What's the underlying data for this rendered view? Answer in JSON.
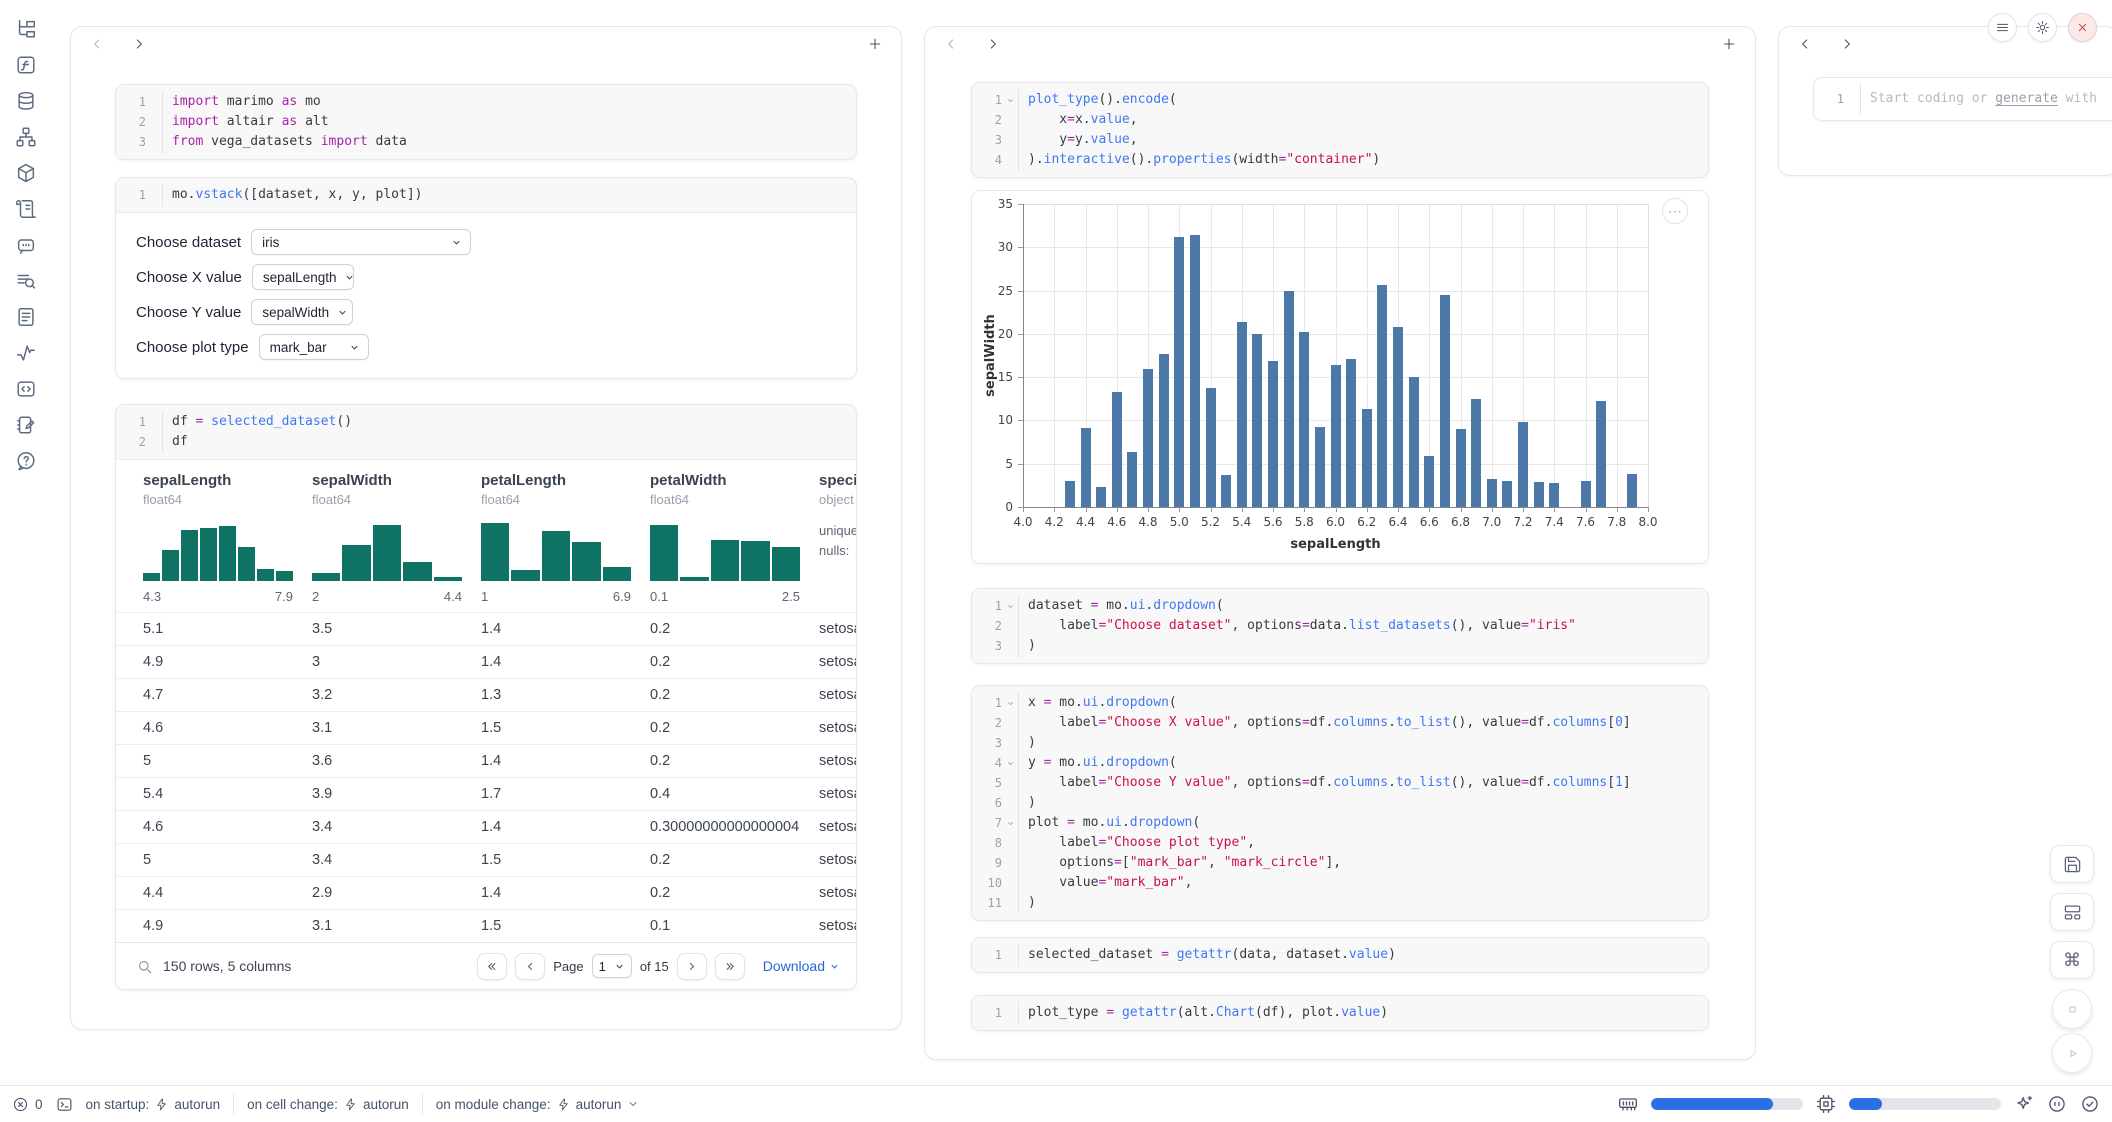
{
  "sidebar": {
    "icons": [
      "file-tree",
      "functions",
      "database",
      "dependency-graph",
      "packages",
      "logs",
      "ai-chat",
      "search-docs",
      "documentation",
      "tracing",
      "code-outline",
      "scratchpad",
      "help"
    ]
  },
  "left_panel": {
    "cells": {
      "imports": {
        "folds": [],
        "lines": [
          [
            [
              "k",
              "import"
            ],
            [
              "p",
              " marimo "
            ],
            [
              "k",
              "as"
            ],
            [
              "p",
              " mo"
            ]
          ],
          [
            [
              "k",
              "import"
            ],
            [
              "p",
              " altair "
            ],
            [
              "k",
              "as"
            ],
            [
              "p",
              " alt"
            ]
          ],
          [
            [
              "k",
              "from"
            ],
            [
              "p",
              " vega_datasets "
            ],
            [
              "k",
              "import"
            ],
            [
              "p",
              " data"
            ]
          ]
        ]
      },
      "layout": {
        "folds": [],
        "lines": [
          [
            [
              "p",
              "mo."
            ],
            [
              "f",
              "vstack"
            ],
            [
              "p",
              "([dataset, x, y, plot])"
            ]
          ]
        ]
      },
      "dataframe": {
        "folds": [],
        "lines": [
          [
            [
              "p",
              "df "
            ],
            [
              "k",
              "="
            ],
            [
              "p",
              " "
            ],
            [
              "f",
              "selected_dataset"
            ],
            [
              "p",
              "()"
            ]
          ],
          [
            [
              "p",
              "df"
            ]
          ]
        ]
      }
    },
    "controls": [
      {
        "label": "Choose dataset",
        "value": "iris"
      },
      {
        "label": "Choose X value",
        "value": "sepalLength"
      },
      {
        "label": "Choose Y value",
        "value": "sepalWidth"
      },
      {
        "label": "Choose plot type",
        "value": "mark_bar"
      }
    ],
    "table": {
      "columns": [
        {
          "name": "sepalLength",
          "dtype": "float64",
          "min": "4.3",
          "max": "7.9",
          "hist": [
            0.13,
            0.5,
            0.82,
            0.85,
            0.88,
            0.55,
            0.2,
            0.16
          ]
        },
        {
          "name": "sepalWidth",
          "dtype": "float64",
          "min": "2",
          "max": "4.4",
          "hist": [
            0.13,
            0.58,
            0.9,
            0.3,
            0.06
          ]
        },
        {
          "name": "petalLength",
          "dtype": "float64",
          "min": "1",
          "max": "6.9",
          "hist": [
            0.93,
            0.18,
            0.8,
            0.63,
            0.22
          ]
        },
        {
          "name": "petalWidth",
          "dtype": "float64",
          "min": "0.1",
          "max": "2.5",
          "hist": [
            0.9,
            0.06,
            0.66,
            0.64,
            0.55
          ]
        },
        {
          "name": "species",
          "dtype": "object",
          "stats": [
            "unique:",
            "nulls:"
          ]
        }
      ],
      "rows": [
        [
          "5.1",
          "3.5",
          "1.4",
          "0.2",
          "setosa"
        ],
        [
          "4.9",
          "3",
          "1.4",
          "0.2",
          "setosa"
        ],
        [
          "4.7",
          "3.2",
          "1.3",
          "0.2",
          "setosa"
        ],
        [
          "4.6",
          "3.1",
          "1.5",
          "0.2",
          "setosa"
        ],
        [
          "5",
          "3.6",
          "1.4",
          "0.2",
          "setosa"
        ],
        [
          "5.4",
          "3.9",
          "1.7",
          "0.4",
          "setosa"
        ],
        [
          "4.6",
          "3.4",
          "1.4",
          "0.30000000000000004",
          "setosa"
        ],
        [
          "5",
          "3.4",
          "1.5",
          "0.2",
          "setosa"
        ],
        [
          "4.4",
          "2.9",
          "1.4",
          "0.2",
          "setosa"
        ],
        [
          "4.9",
          "3.1",
          "1.5",
          "0.1",
          "setosa"
        ]
      ],
      "footer": {
        "summary": "150 rows, 5 columns",
        "page_label": "Page",
        "page_value": "1",
        "of_label": "of 15",
        "download_label": "Download"
      }
    }
  },
  "middle_panel": {
    "cells": {
      "plot": {
        "folds": [
          1
        ],
        "lines": [
          [
            [
              "f",
              "plot_type"
            ],
            [
              "p",
              "()."
            ],
            [
              "f",
              "encode"
            ],
            [
              "p",
              "("
            ]
          ],
          [
            [
              "p",
              "    x"
            ],
            [
              "k",
              "="
            ],
            [
              "p",
              "x."
            ],
            [
              "f",
              "value"
            ],
            [
              "p",
              ","
            ]
          ],
          [
            [
              "p",
              "    y"
            ],
            [
              "k",
              "="
            ],
            [
              "p",
              "y."
            ],
            [
              "f",
              "value"
            ],
            [
              "p",
              ","
            ]
          ],
          [
            [
              "p",
              ")."
            ],
            [
              "f",
              "interactive"
            ],
            [
              "p",
              "()."
            ],
            [
              "f",
              "properties"
            ],
            [
              "p",
              "(width"
            ],
            [
              "k",
              "="
            ],
            [
              "s",
              "\"container\""
            ],
            [
              "p",
              ")"
            ]
          ]
        ]
      },
      "dataset_dropdown": {
        "folds": [
          1
        ],
        "lines": [
          [
            [
              "p",
              "dataset "
            ],
            [
              "k",
              "="
            ],
            [
              "p",
              " mo."
            ],
            [
              "f",
              "ui"
            ],
            [
              "p",
              "."
            ],
            [
              "f",
              "dropdown"
            ],
            [
              "p",
              "("
            ]
          ],
          [
            [
              "p",
              "    label"
            ],
            [
              "k",
              "="
            ],
            [
              "s",
              "\"Choose dataset\""
            ],
            [
              "p",
              ", options"
            ],
            [
              "k",
              "="
            ],
            [
              "p",
              "data."
            ],
            [
              "f",
              "list_datasets"
            ],
            [
              "p",
              "(), value"
            ],
            [
              "k",
              "="
            ],
            [
              "s",
              "\"iris\""
            ]
          ],
          [
            [
              "p",
              ")"
            ]
          ]
        ]
      },
      "xy_dropdowns": {
        "folds": [
          1,
          4,
          7
        ],
        "lines": [
          [
            [
              "p",
              "x "
            ],
            [
              "k",
              "="
            ],
            [
              "p",
              " mo."
            ],
            [
              "f",
              "ui"
            ],
            [
              "p",
              "."
            ],
            [
              "f",
              "dropdown"
            ],
            [
              "p",
              "("
            ]
          ],
          [
            [
              "p",
              "    label"
            ],
            [
              "k",
              "="
            ],
            [
              "s",
              "\"Choose X value\""
            ],
            [
              "p",
              ", options"
            ],
            [
              "k",
              "="
            ],
            [
              "p",
              "df."
            ],
            [
              "f",
              "columns"
            ],
            [
              "p",
              "."
            ],
            [
              "f",
              "to_list"
            ],
            [
              "p",
              "(), value"
            ],
            [
              "k",
              "="
            ],
            [
              "p",
              "df."
            ],
            [
              "f",
              "columns"
            ],
            [
              "p",
              "["
            ],
            [
              "n",
              "0"
            ],
            [
              "p",
              "]"
            ]
          ],
          [
            [
              "p",
              ")"
            ]
          ],
          [
            [
              "p",
              "y "
            ],
            [
              "k",
              "="
            ],
            [
              "p",
              " mo."
            ],
            [
              "f",
              "ui"
            ],
            [
              "p",
              "."
            ],
            [
              "f",
              "dropdown"
            ],
            [
              "p",
              "("
            ]
          ],
          [
            [
              "p",
              "    label"
            ],
            [
              "k",
              "="
            ],
            [
              "s",
              "\"Choose Y value\""
            ],
            [
              "p",
              ", options"
            ],
            [
              "k",
              "="
            ],
            [
              "p",
              "df."
            ],
            [
              "f",
              "columns"
            ],
            [
              "p",
              "."
            ],
            [
              "f",
              "to_list"
            ],
            [
              "p",
              "(), value"
            ],
            [
              "k",
              "="
            ],
            [
              "p",
              "df."
            ],
            [
              "f",
              "columns"
            ],
            [
              "p",
              "["
            ],
            [
              "n",
              "1"
            ],
            [
              "p",
              "]"
            ]
          ],
          [
            [
              "p",
              ")"
            ]
          ],
          [
            [
              "p",
              "plot "
            ],
            [
              "k",
              "="
            ],
            [
              "p",
              " mo."
            ],
            [
              "f",
              "ui"
            ],
            [
              "p",
              "."
            ],
            [
              "f",
              "dropdown"
            ],
            [
              "p",
              "("
            ]
          ],
          [
            [
              "p",
              "    label"
            ],
            [
              "k",
              "="
            ],
            [
              "s",
              "\"Choose plot type\""
            ],
            [
              "p",
              ","
            ]
          ],
          [
            [
              "p",
              "    options"
            ],
            [
              "k",
              "="
            ],
            [
              "p",
              "["
            ],
            [
              "s",
              "\"mark_bar\""
            ],
            [
              "p",
              ", "
            ],
            [
              "s",
              "\"mark_circle\""
            ],
            [
              "p",
              "],"
            ]
          ],
          [
            [
              "p",
              "    value"
            ],
            [
              "k",
              "="
            ],
            [
              "s",
              "\"mark_bar\""
            ],
            [
              "p",
              ","
            ]
          ],
          [
            [
              "p",
              ")"
            ]
          ]
        ]
      },
      "selected_dataset": {
        "folds": [],
        "lines": [
          [
            [
              "p",
              "selected_dataset "
            ],
            [
              "k",
              "="
            ],
            [
              "p",
              " "
            ],
            [
              "f",
              "getattr"
            ],
            [
              "p",
              "(data, dataset."
            ],
            [
              "f",
              "value"
            ],
            [
              "p",
              ")"
            ]
          ]
        ]
      },
      "plot_type": {
        "folds": [],
        "lines": [
          [
            [
              "p",
              "plot_type "
            ],
            [
              "k",
              "="
            ],
            [
              "p",
              " "
            ],
            [
              "f",
              "getattr"
            ],
            [
              "p",
              "(alt."
            ],
            [
              "f",
              "Chart"
            ],
            [
              "p",
              "(df), plot."
            ],
            [
              "f",
              "value"
            ],
            [
              "p",
              ")"
            ]
          ]
        ]
      }
    }
  },
  "right_panel": {
    "line_number": "1",
    "placeholder_prefix": "Start coding or ",
    "placeholder_link": "generate",
    "placeholder_suffix": " with"
  },
  "chart_data": {
    "type": "bar",
    "title": "",
    "xlabel": "sepalLength",
    "ylabel": "sepalWidth",
    "xlim": [
      4.0,
      8.0
    ],
    "ylim": [
      0,
      35
    ],
    "grid": true,
    "bar_color": "#4c78a8",
    "x_tick_labels": [
      "4.0",
      "4.2",
      "4.4",
      "4.6",
      "4.8",
      "5.0",
      "5.2",
      "5.4",
      "5.6",
      "5.8",
      "6.0",
      "6.2",
      "6.4",
      "6.6",
      "6.8",
      "7.0",
      "7.2",
      "7.4",
      "7.6",
      "7.8",
      "8.0"
    ],
    "y_ticks": [
      0,
      5,
      10,
      15,
      20,
      25,
      30,
      35
    ],
    "x": [
      4.3,
      4.4,
      4.5,
      4.6,
      4.7,
      4.8,
      4.9,
      5.0,
      5.1,
      5.2,
      5.3,
      5.4,
      5.5,
      5.6,
      5.7,
      5.8,
      5.9,
      6.0,
      6.1,
      6.2,
      6.3,
      6.4,
      6.5,
      6.6,
      6.7,
      6.8,
      6.9,
      7.0,
      7.1,
      7.2,
      7.3,
      7.4,
      7.6,
      7.7,
      7.9
    ],
    "values": [
      3.0,
      9.1,
      2.3,
      13.3,
      6.4,
      15.9,
      17.7,
      31.2,
      31.4,
      13.7,
      3.7,
      21.4,
      20.0,
      16.9,
      24.9,
      20.2,
      9.2,
      16.4,
      17.1,
      11.3,
      25.7,
      20.8,
      15.0,
      5.9,
      24.5,
      9.0,
      12.5,
      3.2,
      3.0,
      9.8,
      2.9,
      2.8,
      3.0,
      12.2,
      3.8
    ]
  },
  "status_bar": {
    "error_count": "0",
    "groups": [
      {
        "label": "on startup:",
        "value": "autorun"
      },
      {
        "label": "on cell change:",
        "value": "autorun"
      },
      {
        "label": "on module change:",
        "value": "autorun"
      }
    ],
    "memory_fill": 0.8,
    "cpu_fill": 0.22
  }
}
